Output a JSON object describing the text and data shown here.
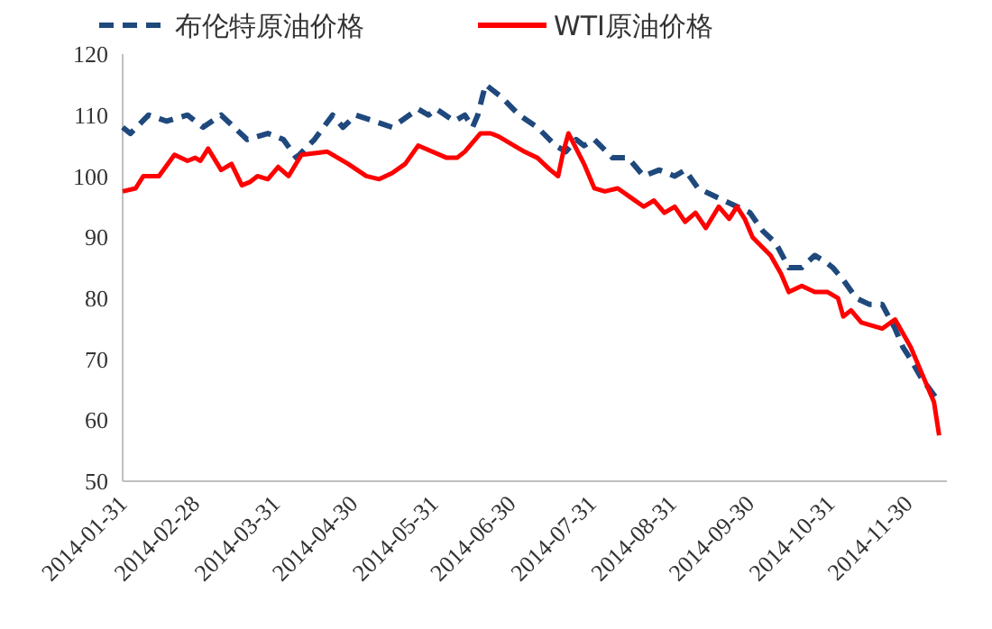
{
  "chart_data": {
    "type": "line",
    "legend": "top",
    "grid": false,
    "xlim": [
      "2014-01-31",
      "2014-12-15"
    ],
    "xticks": [
      "2014-01-31",
      "2014-02-28",
      "2014-03-31",
      "2014-04-30",
      "2014-05-31",
      "2014-06-30",
      "2014-07-31",
      "2014-08-31",
      "2014-09-30",
      "2014-10-31",
      "2014-11-30"
    ],
    "ylim": [
      50,
      120
    ],
    "yticks": [
      50,
      60,
      70,
      80,
      90,
      100,
      110,
      120
    ],
    "series": [
      {
        "name": "布伦特原油价格",
        "color": "#1f497d",
        "line_style": "dashed",
        "x": [
          "2014-01-31",
          "2014-02-03",
          "2014-02-10",
          "2014-02-17",
          "2014-02-25",
          "2014-03-03",
          "2014-03-10",
          "2014-03-15",
          "2014-03-20",
          "2014-03-28",
          "2014-04-03",
          "2014-04-08",
          "2014-04-15",
          "2014-04-22",
          "2014-04-26",
          "2014-05-01",
          "2014-05-08",
          "2014-05-15",
          "2014-05-25",
          "2014-05-29",
          "2014-06-01",
          "2014-06-08",
          "2014-06-12",
          "2014-06-15",
          "2014-06-17",
          "2014-06-20",
          "2014-06-26",
          "2014-07-03",
          "2014-07-10",
          "2014-07-17",
          "2014-07-21",
          "2014-07-25",
          "2014-07-28",
          "2014-08-01",
          "2014-08-08",
          "2014-08-14",
          "2014-08-20",
          "2014-08-26",
          "2014-09-01",
          "2014-09-05",
          "2014-09-10",
          "2014-09-15",
          "2014-09-20",
          "2014-09-25",
          "2014-09-30",
          "2014-10-05",
          "2014-10-10",
          "2014-10-15",
          "2014-10-20",
          "2014-10-25",
          "2014-10-29",
          "2014-11-01",
          "2014-11-05",
          "2014-11-10",
          "2014-11-15",
          "2014-11-20",
          "2014-11-25",
          "2014-11-28",
          "2014-12-01",
          "2014-12-05",
          "2014-12-12"
        ],
        "values": [
          108,
          107,
          110,
          109,
          110,
          108,
          110,
          108,
          106,
          107,
          106,
          103,
          106,
          110,
          108,
          110,
          109,
          108,
          111,
          110,
          111,
          109,
          110,
          108,
          110,
          115,
          113,
          110,
          108,
          105,
          104,
          106,
          105,
          106,
          103,
          103,
          100,
          101,
          100,
          101,
          98,
          97,
          96,
          95,
          94,
          91,
          89,
          85,
          85,
          87,
          86,
          85,
          83,
          80,
          79,
          79,
          75,
          72,
          70,
          67,
          63
        ]
      },
      {
        "name": "WTI原油价格",
        "color": "#ff0000",
        "line_style": "solid",
        "x": [
          "2014-01-31",
          "2014-02-05",
          "2014-02-08",
          "2014-02-14",
          "2014-02-20",
          "2014-02-25",
          "2014-02-28",
          "2014-03-02",
          "2014-03-05",
          "2014-03-10",
          "2014-03-14",
          "2014-03-18",
          "2014-03-21",
          "2014-03-24",
          "2014-03-28",
          "2014-04-01",
          "2014-04-05",
          "2014-04-10",
          "2014-04-20",
          "2014-04-28",
          "2014-05-05",
          "2014-05-10",
          "2014-05-15",
          "2014-05-20",
          "2014-05-25",
          "2014-06-05",
          "2014-06-09",
          "2014-06-12",
          "2014-06-18",
          "2014-06-22",
          "2014-06-25",
          "2014-07-05",
          "2014-07-10",
          "2014-07-15",
          "2014-07-18",
          "2014-07-20",
          "2014-07-22",
          "2014-07-28",
          "2014-08-01",
          "2014-08-05",
          "2014-08-10",
          "2014-08-15",
          "2014-08-20",
          "2014-08-24",
          "2014-08-28",
          "2014-09-01",
          "2014-09-05",
          "2014-09-09",
          "2014-09-13",
          "2014-09-18",
          "2014-09-22",
          "2014-09-25",
          "2014-09-28",
          "2014-10-01",
          "2014-10-08",
          "2014-10-12",
          "2014-10-15",
          "2014-10-20",
          "2014-10-25",
          "2014-10-30",
          "2014-11-03",
          "2014-11-05",
          "2014-11-08",
          "2014-11-12",
          "2014-11-20",
          "2014-11-25",
          "2014-12-01",
          "2014-12-05",
          "2014-12-08",
          "2014-12-10",
          "2014-12-12"
        ],
        "values": [
          97.5,
          98,
          100,
          100,
          103.5,
          102.5,
          103,
          102.5,
          104.5,
          101,
          102,
          98.5,
          99,
          100,
          99.5,
          101.5,
          100,
          103.5,
          104,
          102,
          100,
          99.5,
          100.5,
          102,
          105,
          103,
          103,
          104,
          107,
          107,
          106.5,
          104,
          103,
          101,
          100,
          104,
          107,
          102,
          98,
          97.5,
          98,
          96.5,
          95,
          96,
          94,
          95,
          92.5,
          94,
          91.5,
          95,
          93,
          95,
          93,
          90,
          87,
          84,
          81,
          82,
          81,
          81,
          80,
          77,
          78,
          76,
          75,
          76.5,
          72,
          68,
          65,
          63,
          57.5
        ]
      }
    ]
  }
}
